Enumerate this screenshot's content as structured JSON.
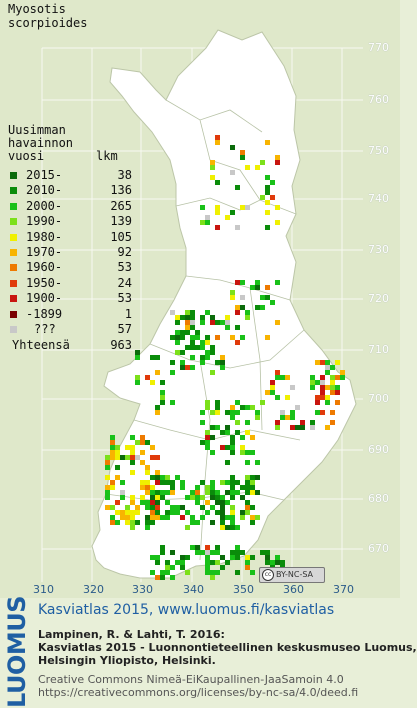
{
  "species_title": [
    "Myosotis",
    "scorpioides"
  ],
  "legend": {
    "heading_lines": [
      "Uusimman",
      "havainnon",
      "vuosi"
    ],
    "count_heading": "lkm",
    "items": [
      {
        "label": "2015-",
        "count": "38",
        "color": "#0b6b0b"
      },
      {
        "label": "2010-",
        "count": "136",
        "color": "#0a8c0a"
      },
      {
        "label": "2000-",
        "count": "265",
        "color": "#19c119"
      },
      {
        "label": "1990-",
        "count": "139",
        "color": "#7ce01a"
      },
      {
        "label": "1980-",
        "count": "105",
        "color": "#f0f000"
      },
      {
        "label": "1970-",
        "count": "92",
        "color": "#f8b400"
      },
      {
        "label": "1960-",
        "count": "53",
        "color": "#ee7a00"
      },
      {
        "label": "1950-",
        "count": "24",
        "color": "#e03a0a"
      },
      {
        "label": "1900-",
        "count": "53",
        "color": "#c8150f"
      },
      {
        "label": "-1899",
        "count": "1",
        "color": "#7a0000"
      },
      {
        "label": "???",
        "count": "57",
        "color": "#c8c8c8"
      }
    ],
    "total_label": "Yhteensä",
    "total_count": "963"
  },
  "axes": {
    "y_ticks": [
      "770",
      "760",
      "750",
      "740",
      "730",
      "720",
      "710",
      "700",
      "690",
      "680",
      "670"
    ],
    "x_ticks": [
      "310",
      "320",
      "330",
      "340",
      "350",
      "360",
      "370"
    ]
  },
  "license_badge": "BY-NC-SA",
  "footer": {
    "logo": "LUOMUS",
    "heading": "Kasviatlas 2015, www.luomus.fi/kasviatlas",
    "citation_lines": [
      "Lampinen, R. & Lahti, T. 2016:",
      "Kasviatlas 2015 - Luonnontieteellinen keskusmuseo Luomus,",
      "Helsingin Yliopisto, Helsinki."
    ],
    "license_lines": [
      "Creative Commons Nimeä-EiKaupallinen-JaaSamoin 4.0",
      "https://creativecommons.org/licenses/by-nc-sa/4.0/deed.fi"
    ]
  }
}
